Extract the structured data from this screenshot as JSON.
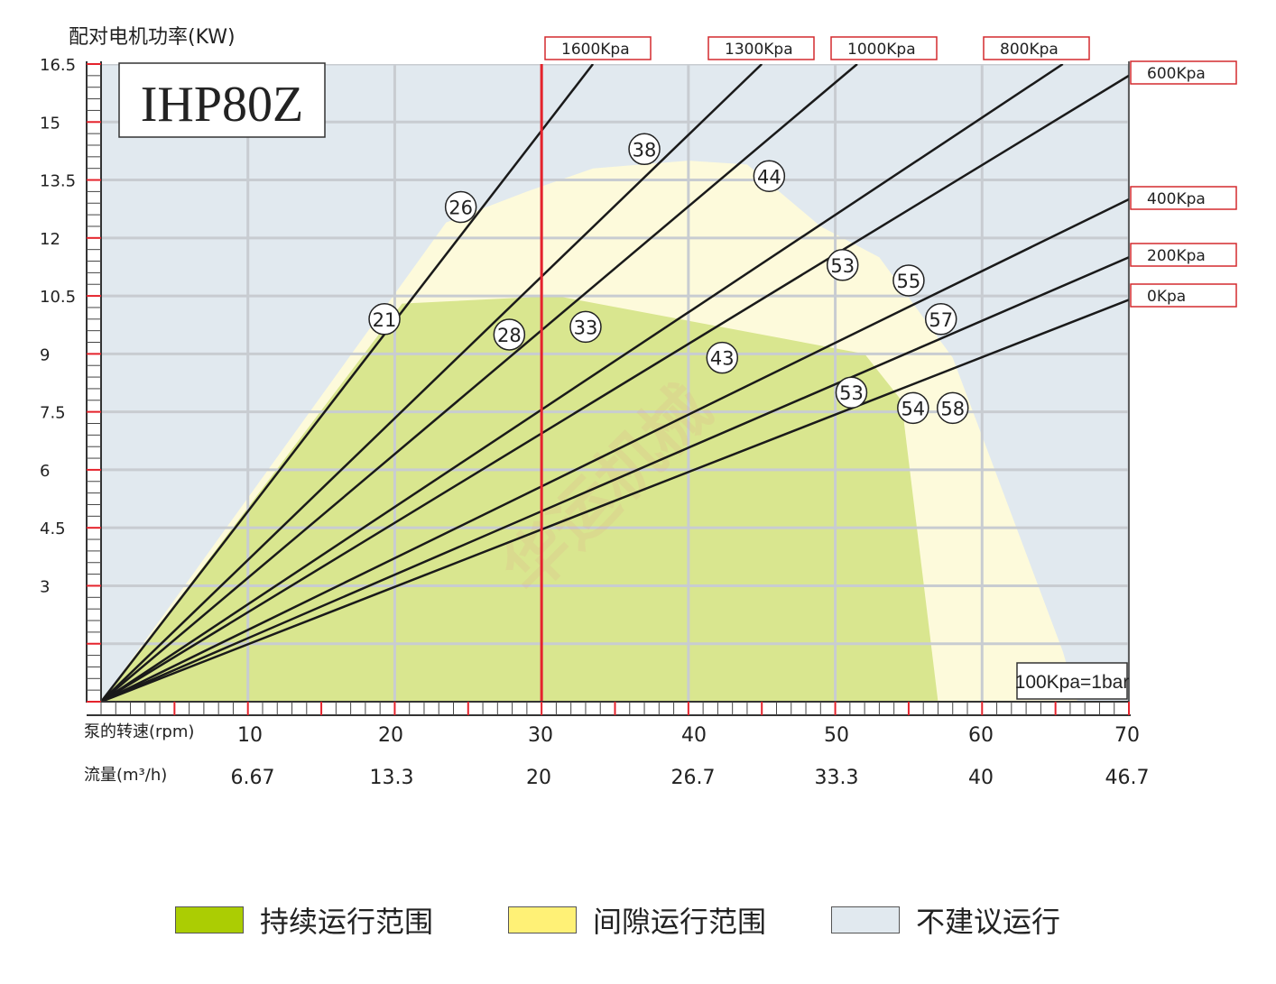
{
  "chart_data": {
    "type": "line",
    "title": "IHP80Z",
    "ylabel": "配对电机功率(KW)",
    "xlabel": "泵的转速(rpm)",
    "x2label": "流量(m³/h)",
    "note": "100Kpa=1bar",
    "xlim": [
      0,
      70
    ],
    "ylim": [
      0,
      16.5
    ],
    "x_ticks": [
      "10",
      "20",
      "30",
      "40",
      "50",
      "60",
      "70"
    ],
    "x2_ticks": [
      "6.67",
      "13.3",
      "20",
      "26.7",
      "33.3",
      "40",
      "46.7"
    ],
    "y_ticks": [
      "16.5",
      "15",
      "13.5",
      "12",
      "10.5",
      "9",
      "7.5",
      "6",
      "4.5",
      "3"
    ],
    "limit_rpm": 30,
    "series": [
      {
        "name": "1600Kpa",
        "points": [
          [
            0,
            0
          ],
          [
            33.5,
            16.5
          ]
        ]
      },
      {
        "name": "1300Kpa",
        "points": [
          [
            0,
            0
          ],
          [
            45,
            16.5
          ]
        ]
      },
      {
        "name": "1000Kpa",
        "points": [
          [
            0,
            0
          ],
          [
            51.5,
            16.5
          ]
        ]
      },
      {
        "name": "800Kpa",
        "points": [
          [
            0,
            0
          ],
          [
            65.5,
            16.5
          ]
        ]
      },
      {
        "name": "600Kpa",
        "points": [
          [
            0,
            0
          ],
          [
            70,
            16.2
          ]
        ]
      },
      {
        "name": "400Kpa",
        "points": [
          [
            0,
            0
          ],
          [
            70,
            13.0
          ]
        ]
      },
      {
        "name": "200Kpa",
        "points": [
          [
            0,
            0
          ],
          [
            70,
            11.5
          ]
        ]
      },
      {
        "name": "0Kpa",
        "points": [
          [
            0,
            0
          ],
          [
            70,
            10.4
          ]
        ]
      }
    ],
    "markers": [
      {
        "label": "26",
        "x": 24.5,
        "y": 12.8
      },
      {
        "label": "21",
        "x": 19.3,
        "y": 9.9
      },
      {
        "label": "38",
        "x": 37,
        "y": 14.3
      },
      {
        "label": "28",
        "x": 27.8,
        "y": 9.5
      },
      {
        "label": "33",
        "x": 33,
        "y": 9.7
      },
      {
        "label": "44",
        "x": 45.5,
        "y": 13.6
      },
      {
        "label": "43",
        "x": 42.3,
        "y": 8.9
      },
      {
        "label": "53",
        "x": 50.5,
        "y": 11.3
      },
      {
        "label": "55",
        "x": 55,
        "y": 10.9
      },
      {
        "label": "57",
        "x": 57.2,
        "y": 9.9
      },
      {
        "label": "53",
        "x": 51.1,
        "y": 8.0
      },
      {
        "label": "54",
        "x": 55.3,
        "y": 7.6
      },
      {
        "label": "58",
        "x": 58,
        "y": 7.6
      }
    ],
    "regions": {
      "continuous": [
        [
          0,
          0
        ],
        [
          20.5,
          10.3
        ],
        [
          31,
          10.5
        ],
        [
          52,
          9.0
        ],
        [
          54.5,
          7.8
        ],
        [
          57,
          0
        ]
      ],
      "intermittent": [
        [
          0,
          0
        ],
        [
          23.5,
          12.4
        ],
        [
          29,
          13.2
        ],
        [
          33.5,
          13.8
        ],
        [
          40,
          14.0
        ],
        [
          44,
          13.9
        ],
        [
          49,
          12.3
        ],
        [
          53,
          11.5
        ],
        [
          58,
          8.9
        ],
        [
          65.5,
          1.3
        ],
        [
          66.5,
          0
        ]
      ]
    },
    "colors": {
      "continuous": "#d9e68f",
      "intermittent": "#fdfadb",
      "not_recommended": "#e1e9ef",
      "grid": "#c8ccd1",
      "curve": "#1a1a1a",
      "limit_line": "#e5232c",
      "tick_red": "#e5232c",
      "label_box_border": "#d42a2f"
    },
    "legend": [
      {
        "label": "持续运行范围",
        "color": "#abcd03"
      },
      {
        "label": "间隙运行范围",
        "color": "#fff176"
      },
      {
        "label": "不建议运行",
        "color": "#e1e9ef"
      }
    ]
  }
}
